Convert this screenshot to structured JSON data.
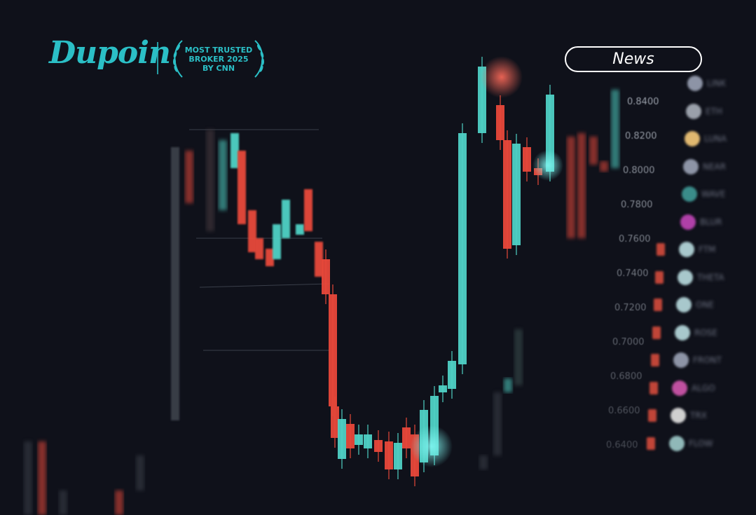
{
  "brand": {
    "name": "Dupoin",
    "badge_lines": [
      "MOST TRUSTED",
      "BROKER 2025",
      "BY CNN"
    ],
    "color": "#2bbfc6"
  },
  "news_button": {
    "label": "News"
  },
  "price_axis": [
    "0.8400",
    "0.8200",
    "0.8000",
    "0.7800",
    "0.7600",
    "0.7400",
    "0.7200",
    "0.7000",
    "0.6800",
    "0.6600",
    "0.6400"
  ],
  "coins": [
    "LINK",
    "ETH",
    "LUNA",
    "NEAR",
    "WAVE",
    "BLUR",
    "FTM",
    "THETA",
    "ONE",
    "ROSE",
    "FRONT",
    "ALGO",
    "TRX",
    "FLOW"
  ],
  "colors": {
    "up": "#4fd1c5",
    "down": "#e8483a",
    "background": "#0f111a"
  }
}
